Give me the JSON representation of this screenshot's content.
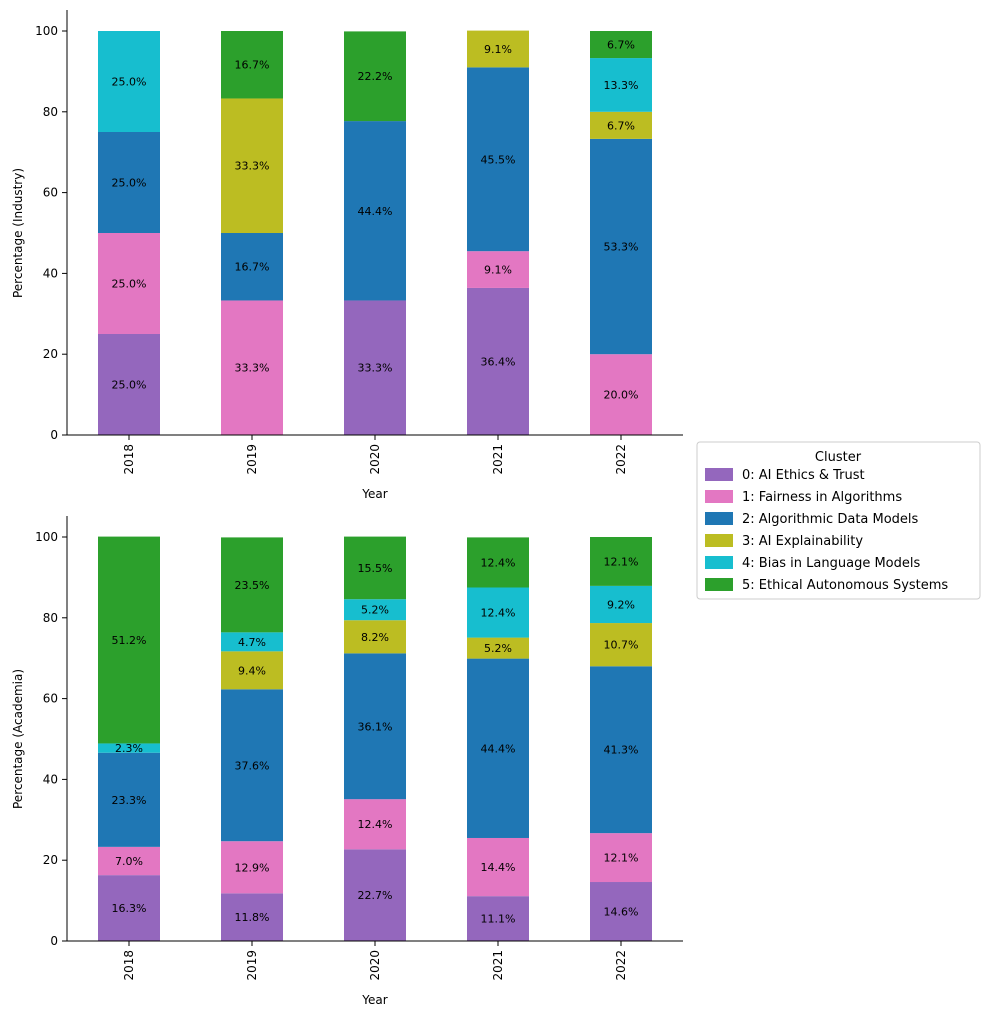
{
  "chart_data": {
    "type": "bar",
    "stacked": true,
    "categories": [
      "2018",
      "2019",
      "2020",
      "2021",
      "2022"
    ],
    "xlabel": "Year",
    "legend": {
      "title": "Cluster",
      "placement": "right-center",
      "entries": [
        {
          "name": "0: AI Ethics & Trust",
          "color": "#9467bd"
        },
        {
          "name": "1: Fairness in Algorithms",
          "color": "#e377c2"
        },
        {
          "name": "2: Algorithmic Data Models",
          "color": "#1f77b4"
        },
        {
          "name": "3: AI Explainability",
          "color": "#bcbd22"
        },
        {
          "name": "4: Bias in Language Models",
          "color": "#17becf"
        },
        {
          "name": "5: Ethical Autonomous Systems",
          "color": "#2ca02c"
        }
      ]
    },
    "panels": [
      {
        "ylabel": "Percentage (Industry)",
        "ylim": [
          0,
          100
        ],
        "yticks": [
          0,
          20,
          40,
          60,
          80,
          100
        ],
        "series": [
          {
            "values": [
              25.0,
              0,
              33.3,
              36.4,
              0
            ]
          },
          {
            "values": [
              25.0,
              33.3,
              0,
              9.1,
              20.0
            ]
          },
          {
            "values": [
              25.0,
              16.7,
              44.4,
              45.5,
              53.3
            ]
          },
          {
            "values": [
              0,
              33.3,
              0,
              9.1,
              6.7
            ]
          },
          {
            "values": [
              25.0,
              0,
              0,
              0,
              13.3
            ]
          },
          {
            "values": [
              0,
              16.7,
              22.2,
              0,
              6.7
            ]
          }
        ]
      },
      {
        "ylabel": "Percentage (Academia)",
        "ylim": [
          0,
          100
        ],
        "yticks": [
          0,
          20,
          40,
          60,
          80,
          100
        ],
        "series": [
          {
            "values": [
              16.3,
              11.8,
              22.7,
              11.1,
              14.6
            ]
          },
          {
            "values": [
              7.0,
              12.9,
              12.4,
              14.4,
              12.1
            ]
          },
          {
            "values": [
              23.3,
              37.6,
              36.1,
              44.4,
              41.3
            ]
          },
          {
            "values": [
              0,
              9.4,
              8.2,
              5.2,
              10.7
            ]
          },
          {
            "values": [
              2.3,
              4.7,
              5.2,
              12.4,
              9.2
            ]
          },
          {
            "values": [
              51.2,
              23.5,
              15.5,
              12.4,
              12.1
            ]
          }
        ]
      }
    ]
  }
}
